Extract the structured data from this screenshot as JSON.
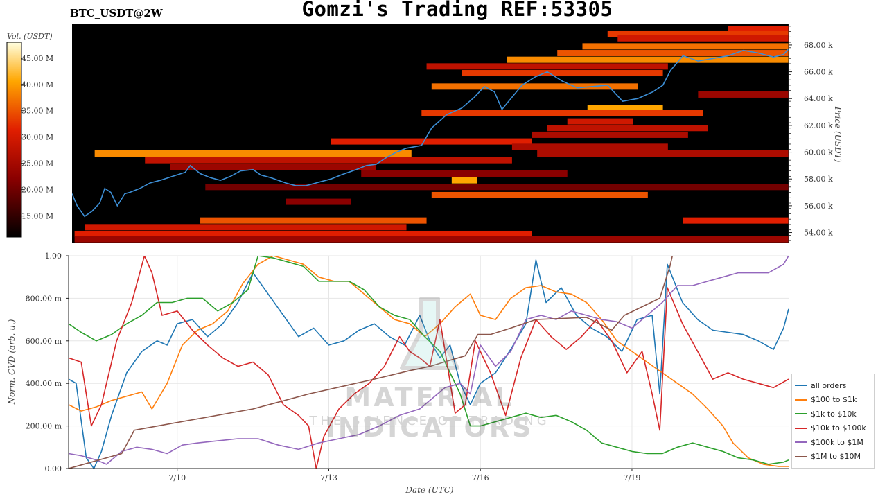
{
  "header": {
    "symbol": "BTC_USDT@2W",
    "title": "Gomzi's Trading REF:53305"
  },
  "watermark": {
    "name": "MATERIAL INDICATORS",
    "tagline": "THE SCIENCE OF TRADING"
  },
  "colors": {
    "all_orders": "#1f77b4",
    "r100_1k": "#ff7f0e",
    "r1k_10k": "#2ca02c",
    "r10k_100k": "#d62728",
    "r100k_1m": "#9467bd",
    "r1m_10m": "#8c564b",
    "heatmap_bg": "#000000",
    "price_line": "#3d8fd6"
  },
  "chart_data": [
    {
      "type": "heatmap",
      "title": "",
      "colorbar_label": "Vol. (USDT)",
      "colorbar_ticks": [
        "45.00 M",
        "40.00 M",
        "35.00 M",
        "30.00 M",
        "25.00 M",
        "20.00 M",
        "15.00 M"
      ],
      "colorbar_values": [
        45,
        40,
        35,
        30,
        25,
        20,
        15
      ],
      "colorbar_range": [
        11,
        48
      ],
      "ylabel": "Price (USDT)",
      "y_ticks": [
        "68.00 k",
        "66.00 k",
        "64.00 k",
        "62.00 k",
        "60.00 k",
        "58.00 k",
        "56.00 k",
        "54.00 k"
      ],
      "y_tick_values": [
        68000,
        66000,
        64000,
        62000,
        60000,
        58000,
        56000,
        54000
      ],
      "ylim": [
        53200,
        69600
      ],
      "x_range_days": [
        7.85,
        22.1
      ],
      "liquidity_bands": [
        {
          "price": 69200,
          "start": 20.9,
          "end": 22.1,
          "intensity": 0.55
        },
        {
          "price": 68800,
          "start": 18.5,
          "end": 22.1,
          "intensity": 0.6
        },
        {
          "price": 68500,
          "start": 18.7,
          "end": 22.1,
          "intensity": 0.5
        },
        {
          "price": 67900,
          "start": 18.0,
          "end": 22.1,
          "intensity": 0.7
        },
        {
          "price": 67400,
          "start": 17.5,
          "end": 22.1,
          "intensity": 0.65
        },
        {
          "price": 66900,
          "start": 16.5,
          "end": 22.1,
          "intensity": 0.75
        },
        {
          "price": 66400,
          "start": 14.9,
          "end": 19.7,
          "intensity": 0.45
        },
        {
          "price": 65900,
          "start": 15.6,
          "end": 19.6,
          "intensity": 0.6
        },
        {
          "price": 64900,
          "start": 15.0,
          "end": 19.1,
          "intensity": 0.7
        },
        {
          "price": 64300,
          "start": 20.3,
          "end": 22.1,
          "intensity": 0.35
        },
        {
          "price": 63300,
          "start": 18.1,
          "end": 19.6,
          "intensity": 0.8
        },
        {
          "price": 62900,
          "start": 14.8,
          "end": 20.4,
          "intensity": 0.6
        },
        {
          "price": 62300,
          "start": 17.7,
          "end": 19.0,
          "intensity": 0.5
        },
        {
          "price": 61800,
          "start": 17.3,
          "end": 20.5,
          "intensity": 0.45
        },
        {
          "price": 61300,
          "start": 17.0,
          "end": 20.1,
          "intensity": 0.4
        },
        {
          "price": 60800,
          "start": 13.0,
          "end": 17.0,
          "intensity": 0.55
        },
        {
          "price": 60400,
          "start": 16.6,
          "end": 19.7,
          "intensity": 0.4
        },
        {
          "price": 59900,
          "start": 8.3,
          "end": 14.6,
          "intensity": 0.75
        },
        {
          "price": 59900,
          "start": 17.1,
          "end": 22.1,
          "intensity": 0.4
        },
        {
          "price": 59400,
          "start": 9.3,
          "end": 16.6,
          "intensity": 0.45
        },
        {
          "price": 58900,
          "start": 9.8,
          "end": 13.9,
          "intensity": 0.35
        },
        {
          "price": 58400,
          "start": 13.6,
          "end": 17.7,
          "intensity": 0.3
        },
        {
          "price": 57900,
          "start": 15.4,
          "end": 15.9,
          "intensity": 0.8
        },
        {
          "price": 57400,
          "start": 10.5,
          "end": 22.1,
          "intensity": 0.25
        },
        {
          "price": 56800,
          "start": 15.0,
          "end": 19.3,
          "intensity": 0.65
        },
        {
          "price": 56300,
          "start": 12.1,
          "end": 13.4,
          "intensity": 0.3
        },
        {
          "price": 54900,
          "start": 10.4,
          "end": 14.9,
          "intensity": 0.65
        },
        {
          "price": 54900,
          "start": 20.0,
          "end": 22.1,
          "intensity": 0.55
        },
        {
          "price": 54400,
          "start": 8.1,
          "end": 14.5,
          "intensity": 0.5
        },
        {
          "price": 53900,
          "start": 7.9,
          "end": 17.0,
          "intensity": 0.55
        },
        {
          "price": 53500,
          "start": 7.9,
          "end": 22.1,
          "intensity": 0.35
        }
      ],
      "price_series": {
        "name": "",
        "x": [
          7.85,
          7.95,
          8.1,
          8.25,
          8.4,
          8.5,
          8.62,
          8.75,
          8.9,
          9.0,
          9.2,
          9.4,
          9.6,
          9.85,
          10.1,
          10.2,
          10.4,
          10.6,
          10.8,
          11.0,
          11.2,
          11.45,
          11.6,
          11.8,
          12.1,
          12.3,
          12.5,
          12.7,
          13.0,
          13.2,
          13.5,
          13.7,
          13.9,
          14.1,
          14.3,
          14.5,
          14.8,
          15.0,
          15.3,
          15.6,
          15.85,
          16.05,
          16.25,
          16.4,
          16.6,
          16.8,
          17.05,
          17.3,
          17.6,
          17.9,
          18.2,
          18.5,
          18.8,
          19.1,
          19.4,
          19.6,
          19.75,
          20.0,
          20.3,
          20.6,
          20.9,
          21.2,
          21.5,
          21.8,
          22.0,
          22.1
        ],
        "y": [
          56900,
          56000,
          55200,
          55600,
          56200,
          57300,
          57000,
          56000,
          56900,
          57000,
          57300,
          57700,
          57900,
          58200,
          58500,
          59000,
          58400,
          58100,
          57900,
          58200,
          58600,
          58700,
          58300,
          58100,
          57700,
          57500,
          57500,
          57700,
          58000,
          58300,
          58700,
          59000,
          59100,
          59600,
          60000,
          60300,
          60500,
          61800,
          62800,
          63300,
          64100,
          64900,
          64500,
          63200,
          64100,
          65000,
          65600,
          66000,
          65300,
          64800,
          64900,
          65000,
          63800,
          64000,
          64500,
          65000,
          66100,
          67200,
          66800,
          67000,
          67200,
          67600,
          67400,
          67100,
          67300,
          67700
        ]
      }
    },
    {
      "type": "line",
      "title": "",
      "xlabel": "Date (UTC)",
      "ylabel": "Norm. CVD (arb. u.)",
      "x_ticks": [
        "7/10",
        "7/13",
        "7/16",
        "7/19"
      ],
      "x_tick_values": [
        10,
        13,
        16,
        19
      ],
      "xlim": [
        7.85,
        22.1
      ],
      "y_ticks": [
        "1.00",
        "800.00 m",
        "600.00 m",
        "400.00 m",
        "200.00 m",
        "0.00"
      ],
      "y_tick_values": [
        1.0,
        0.8,
        0.6,
        0.4,
        0.2,
        0.0
      ],
      "ylim": [
        0,
        1
      ],
      "grid": true,
      "legend_position": "bottom-right",
      "series": [
        {
          "name": "all orders",
          "key": "all_orders",
          "x": [
            7.85,
            8.0,
            8.2,
            8.35,
            8.5,
            8.7,
            9.0,
            9.3,
            9.6,
            9.8,
            10.0,
            10.3,
            10.6,
            10.9,
            11.2,
            11.5,
            11.8,
            12.1,
            12.4,
            12.7,
            13.0,
            13.3,
            13.6,
            13.9,
            14.2,
            14.5,
            14.8,
            15.0,
            15.2,
            15.4,
            15.6,
            15.8,
            16.0,
            16.3,
            16.6,
            16.9,
            17.1,
            17.3,
            17.6,
            17.9,
            18.2,
            18.5,
            18.8,
            19.1,
            19.4,
            19.55,
            19.7,
            20.0,
            20.3,
            20.6,
            20.9,
            21.2,
            21.5,
            21.8,
            22.0,
            22.1
          ],
          "y": [
            0.42,
            0.4,
            0.05,
            0.0,
            0.08,
            0.25,
            0.45,
            0.55,
            0.6,
            0.58,
            0.68,
            0.7,
            0.62,
            0.68,
            0.78,
            0.92,
            0.82,
            0.72,
            0.62,
            0.66,
            0.58,
            0.6,
            0.65,
            0.68,
            0.62,
            0.58,
            0.72,
            0.6,
            0.52,
            0.58,
            0.4,
            0.3,
            0.4,
            0.45,
            0.56,
            0.68,
            0.98,
            0.78,
            0.85,
            0.72,
            0.66,
            0.62,
            0.55,
            0.7,
            0.72,
            0.35,
            0.96,
            0.78,
            0.7,
            0.65,
            0.64,
            0.63,
            0.6,
            0.56,
            0.66,
            0.75
          ]
        },
        {
          "name": "$100 to $1k",
          "key": "r100_1k",
          "x": [
            7.85,
            8.1,
            8.4,
            8.7,
            9.0,
            9.3,
            9.5,
            9.8,
            10.1,
            10.4,
            10.7,
            11.0,
            11.3,
            11.6,
            11.9,
            12.2,
            12.5,
            12.8,
            13.1,
            13.4,
            13.7,
            14.0,
            14.3,
            14.6,
            14.9,
            15.2,
            15.5,
            15.8,
            16.0,
            16.3,
            16.6,
            16.9,
            17.2,
            17.5,
            17.8,
            18.1,
            18.4,
            18.7,
            19.0,
            19.3,
            19.6,
            19.9,
            20.2,
            20.5,
            20.8,
            21.0,
            21.3,
            21.6,
            21.9,
            22.1
          ],
          "y": [
            0.3,
            0.27,
            0.29,
            0.32,
            0.34,
            0.36,
            0.28,
            0.4,
            0.58,
            0.65,
            0.68,
            0.74,
            0.87,
            0.96,
            1.0,
            0.98,
            0.96,
            0.9,
            0.88,
            0.88,
            0.82,
            0.76,
            0.7,
            0.68,
            0.62,
            0.68,
            0.76,
            0.82,
            0.72,
            0.7,
            0.8,
            0.85,
            0.86,
            0.83,
            0.82,
            0.78,
            0.7,
            0.6,
            0.55,
            0.5,
            0.45,
            0.4,
            0.35,
            0.28,
            0.2,
            0.12,
            0.05,
            0.02,
            0.01,
            0.01
          ]
        },
        {
          "name": "$1k to $10k",
          "key": "r1k_10k",
          "x": [
            7.85,
            8.1,
            8.4,
            8.7,
            9.0,
            9.3,
            9.6,
            9.9,
            10.2,
            10.5,
            10.8,
            11.1,
            11.4,
            11.6,
            11.9,
            12.2,
            12.5,
            12.8,
            13.1,
            13.4,
            13.7,
            14.0,
            14.3,
            14.6,
            14.9,
            15.2,
            15.4,
            15.6,
            15.8,
            16.0,
            16.3,
            16.6,
            16.9,
            17.2,
            17.5,
            17.8,
            18.1,
            18.4,
            18.7,
            19.0,
            19.3,
            19.6,
            19.9,
            20.2,
            20.5,
            20.8,
            21.1,
            21.4,
            21.7,
            22.0,
            22.1
          ],
          "y": [
            0.68,
            0.64,
            0.6,
            0.63,
            0.68,
            0.72,
            0.78,
            0.78,
            0.8,
            0.8,
            0.74,
            0.78,
            0.84,
            1.0,
            0.99,
            0.97,
            0.95,
            0.88,
            0.88,
            0.88,
            0.84,
            0.76,
            0.72,
            0.7,
            0.62,
            0.55,
            0.45,
            0.35,
            0.2,
            0.2,
            0.22,
            0.24,
            0.26,
            0.24,
            0.25,
            0.22,
            0.18,
            0.12,
            0.1,
            0.08,
            0.07,
            0.07,
            0.1,
            0.12,
            0.1,
            0.08,
            0.05,
            0.04,
            0.02,
            0.03,
            0.04
          ]
        },
        {
          "name": "$10k to $100k",
          "key": "r10k_100k",
          "x": [
            7.85,
            8.1,
            8.3,
            8.5,
            8.8,
            9.1,
            9.35,
            9.5,
            9.7,
            10.0,
            10.3,
            10.6,
            10.9,
            11.2,
            11.5,
            11.8,
            12.1,
            12.4,
            12.6,
            12.75,
            12.9,
            13.2,
            13.5,
            13.8,
            14.1,
            14.4,
            14.6,
            14.8,
            15.0,
            15.2,
            15.5,
            15.7,
            15.9,
            16.2,
            16.5,
            16.8,
            17.1,
            17.4,
            17.7,
            18.0,
            18.3,
            18.6,
            18.9,
            19.2,
            19.4,
            19.55,
            19.7,
            20.0,
            20.3,
            20.6,
            20.9,
            21.2,
            21.5,
            21.8,
            22.1
          ],
          "y": [
            0.52,
            0.5,
            0.2,
            0.3,
            0.6,
            0.78,
            1.0,
            0.92,
            0.72,
            0.74,
            0.65,
            0.58,
            0.52,
            0.48,
            0.5,
            0.44,
            0.3,
            0.25,
            0.2,
            0.0,
            0.15,
            0.28,
            0.35,
            0.4,
            0.48,
            0.62,
            0.55,
            0.52,
            0.48,
            0.7,
            0.26,
            0.3,
            0.6,
            0.45,
            0.25,
            0.52,
            0.7,
            0.62,
            0.56,
            0.62,
            0.7,
            0.6,
            0.45,
            0.55,
            0.35,
            0.18,
            0.85,
            0.68,
            0.55,
            0.42,
            0.45,
            0.42,
            0.4,
            0.38,
            0.42
          ]
        },
        {
          "name": "$100k to $1M",
          "key": "r100k_1m",
          "x": [
            7.85,
            8.1,
            8.4,
            8.6,
            8.9,
            9.2,
            9.5,
            9.8,
            10.1,
            10.4,
            10.8,
            11.2,
            11.6,
            12.0,
            12.4,
            12.8,
            13.2,
            13.6,
            14.0,
            14.4,
            14.8,
            15.0,
            15.3,
            15.6,
            15.8,
            16.0,
            16.3,
            16.6,
            16.9,
            17.2,
            17.5,
            17.8,
            18.1,
            18.4,
            18.7,
            19.0,
            19.3,
            19.6,
            19.9,
            20.2,
            20.5,
            20.8,
            21.1,
            21.4,
            21.7,
            22.0,
            22.1
          ],
          "y": [
            0.07,
            0.06,
            0.04,
            0.02,
            0.08,
            0.1,
            0.09,
            0.07,
            0.11,
            0.12,
            0.13,
            0.14,
            0.14,
            0.11,
            0.09,
            0.12,
            0.14,
            0.16,
            0.2,
            0.25,
            0.28,
            0.32,
            0.38,
            0.4,
            0.35,
            0.58,
            0.48,
            0.55,
            0.7,
            0.72,
            0.7,
            0.74,
            0.72,
            0.7,
            0.69,
            0.66,
            0.72,
            0.78,
            0.86,
            0.86,
            0.88,
            0.9,
            0.92,
            0.92,
            0.92,
            0.96,
            1.0
          ]
        },
        {
          "name": "$1M to $10M",
          "key": "r1m_10m",
          "x": [
            7.85,
            8.9,
            9.15,
            11.5,
            12.6,
            13.9,
            14.6,
            15.0,
            15.7,
            15.95,
            16.2,
            16.6,
            17.1,
            18.1,
            18.6,
            18.85,
            19.55,
            19.75,
            19.8,
            22.1
          ],
          "y": [
            0.0,
            0.07,
            0.18,
            0.28,
            0.35,
            0.42,
            0.46,
            0.48,
            0.53,
            0.63,
            0.63,
            0.66,
            0.7,
            0.71,
            0.65,
            0.72,
            0.8,
            0.95,
            1.0,
            1.0
          ]
        }
      ]
    }
  ]
}
